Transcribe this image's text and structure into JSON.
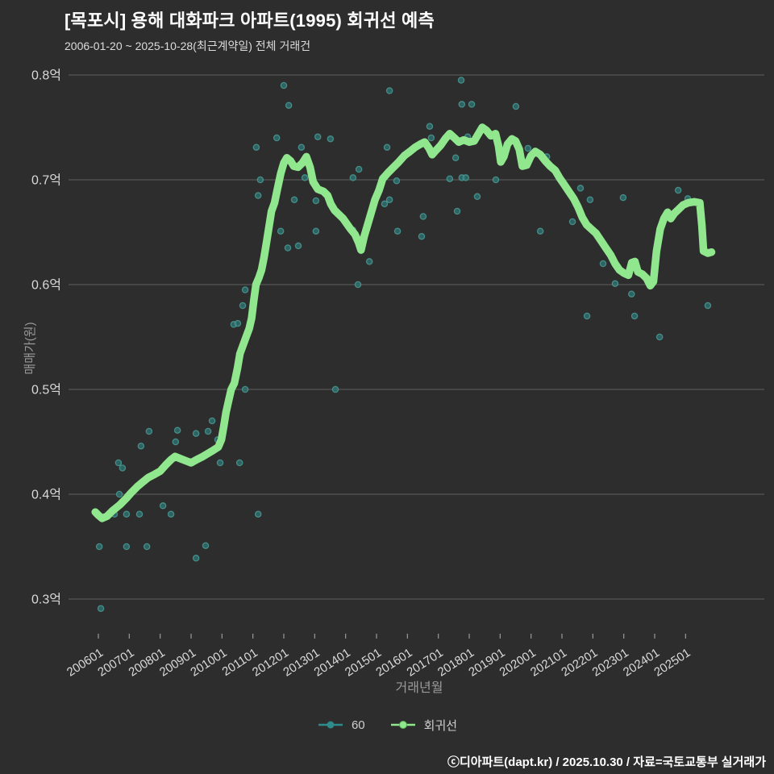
{
  "title": "[목포시] 용해 대화파크 아파트(1995) 회귀선 예측",
  "subtitle": "2006-01-20 ~ 2025-10-28(최근계약일) 전체 거래건",
  "footer": "ⓒ디아파트(dapt.kr) / 2025.10.30 / 자료=국토교통부 실거래가",
  "legend": {
    "series1": "60",
    "series2": "회귀선"
  },
  "colors": {
    "background": "#2d2d2d",
    "scatter_stroke": "#4a9a94",
    "scatter_fill": "#2e7674",
    "legend_scatter": "#2e8b8b",
    "line": "#90e78e",
    "grid": "#8a8a8a",
    "tick_text": "#d9d9d9",
    "axis_title": "#9a9a9a"
  },
  "chart_data": {
    "type": "scatter+line",
    "title": "[목포시] 용해 대화파크 아파트(1995) 회귀선 예측",
    "xlabel": "거래년월",
    "ylabel": "매매가(원)",
    "legend_position": "bottom-center",
    "grid": "horizontal-only",
    "xlim": [
      2005.6,
      2026.3
    ],
    "ylim": [
      0.27,
      0.81
    ],
    "y_ticks": [
      {
        "label": "0.8억",
        "value": 0.8
      },
      {
        "label": "0.7억",
        "value": 0.7
      },
      {
        "label": "0.6억",
        "value": 0.6
      },
      {
        "label": "0.5억",
        "value": 0.5
      },
      {
        "label": "0.4억",
        "value": 0.4
      },
      {
        "label": "0.3억",
        "value": 0.3
      }
    ],
    "x_ticks": [
      {
        "label": "200601",
        "value": 2006
      },
      {
        "label": "200701",
        "value": 2007
      },
      {
        "label": "200801",
        "value": 2008
      },
      {
        "label": "200901",
        "value": 2009
      },
      {
        "label": "201001",
        "value": 2010
      },
      {
        "label": "201101",
        "value": 2011
      },
      {
        "label": "201201",
        "value": 2012
      },
      {
        "label": "201301",
        "value": 2013
      },
      {
        "label": "201401",
        "value": 2014
      },
      {
        "label": "201501",
        "value": 2015
      },
      {
        "label": "201601",
        "value": 2016
      },
      {
        "label": "201701",
        "value": 2017
      },
      {
        "label": "201801",
        "value": 2018
      },
      {
        "label": "201901",
        "value": 2019
      },
      {
        "label": "202001",
        "value": 2020
      },
      {
        "label": "202101",
        "value": 2021
      },
      {
        "label": "202201",
        "value": 2022
      },
      {
        "label": "202301",
        "value": 2023
      },
      {
        "label": "202401",
        "value": 2024
      },
      {
        "label": "202501",
        "value": 2025
      }
    ],
    "series": [
      {
        "name": "60",
        "type": "scatter",
        "points": [
          [
            2006.03,
            0.35
          ],
          [
            2006.08,
            0.291
          ],
          [
            2006.52,
            0.381
          ],
          [
            2006.65,
            0.43
          ],
          [
            2006.68,
            0.4
          ],
          [
            2006.78,
            0.425
          ],
          [
            2006.91,
            0.381
          ],
          [
            2006.91,
            0.35
          ],
          [
            2007.04,
            0.4
          ],
          [
            2007.33,
            0.381
          ],
          [
            2007.38,
            0.446
          ],
          [
            2007.57,
            0.35
          ],
          [
            2007.64,
            0.46
          ],
          [
            2008.09,
            0.389
          ],
          [
            2008.35,
            0.381
          ],
          [
            2008.5,
            0.45
          ],
          [
            2008.56,
            0.461
          ],
          [
            2009.16,
            0.458
          ],
          [
            2009.16,
            0.339
          ],
          [
            2009.47,
            0.351
          ],
          [
            2009.55,
            0.46
          ],
          [
            2009.68,
            0.47
          ],
          [
            2009.86,
            0.452
          ],
          [
            2009.94,
            0.43
          ],
          [
            2010.38,
            0.562
          ],
          [
            2010.51,
            0.563
          ],
          [
            2010.57,
            0.43
          ],
          [
            2010.67,
            0.58
          ],
          [
            2010.75,
            0.595
          ],
          [
            2010.75,
            0.5
          ],
          [
            2011.11,
            0.731
          ],
          [
            2011.17,
            0.381
          ],
          [
            2011.17,
            0.685
          ],
          [
            2011.24,
            0.7
          ],
          [
            2011.77,
            0.74
          ],
          [
            2011.9,
            0.651
          ],
          [
            2012.0,
            0.79
          ],
          [
            2012.13,
            0.635
          ],
          [
            2012.16,
            0.771
          ],
          [
            2012.34,
            0.681
          ],
          [
            2012.47,
            0.637
          ],
          [
            2012.57,
            0.731
          ],
          [
            2012.68,
            0.702
          ],
          [
            2013.04,
            0.651
          ],
          [
            2013.04,
            0.68
          ],
          [
            2013.1,
            0.741
          ],
          [
            2013.51,
            0.739
          ],
          [
            2013.67,
            0.5
          ],
          [
            2014.24,
            0.702
          ],
          [
            2014.24,
            0.652
          ],
          [
            2014.4,
            0.6
          ],
          [
            2014.43,
            0.71
          ],
          [
            2014.77,
            0.622
          ],
          [
            2015.26,
            0.677
          ],
          [
            2015.34,
            0.731
          ],
          [
            2015.42,
            0.785
          ],
          [
            2015.42,
            0.681
          ],
          [
            2015.65,
            0.699
          ],
          [
            2015.68,
            0.651
          ],
          [
            2015.86,
            0.722
          ],
          [
            2016.46,
            0.646
          ],
          [
            2016.51,
            0.665
          ],
          [
            2016.72,
            0.751
          ],
          [
            2016.77,
            0.74
          ],
          [
            2017.37,
            0.701
          ],
          [
            2017.56,
            0.721
          ],
          [
            2017.61,
            0.67
          ],
          [
            2017.74,
            0.795
          ],
          [
            2017.76,
            0.772
          ],
          [
            2017.76,
            0.702
          ],
          [
            2017.89,
            0.702
          ],
          [
            2017.95,
            0.741
          ],
          [
            2018.08,
            0.772
          ],
          [
            2018.26,
            0.684
          ],
          [
            2018.86,
            0.7
          ],
          [
            2019.51,
            0.77
          ],
          [
            2019.9,
            0.73
          ],
          [
            2020.3,
            0.651
          ],
          [
            2020.51,
            0.722
          ],
          [
            2021.34,
            0.66
          ],
          [
            2021.6,
            0.692
          ],
          [
            2021.81,
            0.57
          ],
          [
            2021.91,
            0.681
          ],
          [
            2022.33,
            0.62
          ],
          [
            2022.72,
            0.601
          ],
          [
            2022.98,
            0.683
          ],
          [
            2023.25,
            0.591
          ],
          [
            2023.35,
            0.57
          ],
          [
            2024.16,
            0.55
          ],
          [
            2024.76,
            0.69
          ],
          [
            2025.07,
            0.682
          ],
          [
            2025.72,
            0.58
          ]
        ]
      },
      {
        "name": "회귀선",
        "type": "line",
        "points": [
          [
            2005.9,
            0.383
          ],
          [
            2006.0,
            0.38
          ],
          [
            2006.12,
            0.377
          ],
          [
            2006.28,
            0.379
          ],
          [
            2006.45,
            0.384
          ],
          [
            2006.7,
            0.39
          ],
          [
            2006.9,
            0.396
          ],
          [
            2007.05,
            0.401
          ],
          [
            2007.25,
            0.407
          ],
          [
            2007.45,
            0.412
          ],
          [
            2007.62,
            0.416
          ],
          [
            2007.82,
            0.419
          ],
          [
            2008.0,
            0.422
          ],
          [
            2008.18,
            0.428
          ],
          [
            2008.35,
            0.433
          ],
          [
            2008.48,
            0.436
          ],
          [
            2008.65,
            0.434
          ],
          [
            2008.82,
            0.432
          ],
          [
            2009.0,
            0.43
          ],
          [
            2009.18,
            0.433
          ],
          [
            2009.38,
            0.436
          ],
          [
            2009.55,
            0.439
          ],
          [
            2009.72,
            0.442
          ],
          [
            2009.88,
            0.445
          ],
          [
            2009.98,
            0.452
          ],
          [
            2010.06,
            0.465
          ],
          [
            2010.13,
            0.478
          ],
          [
            2010.22,
            0.49
          ],
          [
            2010.3,
            0.5
          ],
          [
            2010.4,
            0.506
          ],
          [
            2010.5,
            0.52
          ],
          [
            2010.58,
            0.534
          ],
          [
            2010.68,
            0.542
          ],
          [
            2010.78,
            0.55
          ],
          [
            2010.88,
            0.558
          ],
          [
            2010.96,
            0.568
          ],
          [
            2011.03,
            0.585
          ],
          [
            2011.1,
            0.6
          ],
          [
            2011.2,
            0.607
          ],
          [
            2011.28,
            0.614
          ],
          [
            2011.36,
            0.626
          ],
          [
            2011.44,
            0.64
          ],
          [
            2011.52,
            0.655
          ],
          [
            2011.6,
            0.67
          ],
          [
            2011.7,
            0.678
          ],
          [
            2011.8,
            0.692
          ],
          [
            2011.9,
            0.706
          ],
          [
            2012.0,
            0.716
          ],
          [
            2012.1,
            0.721
          ],
          [
            2012.22,
            0.718
          ],
          [
            2012.32,
            0.713
          ],
          [
            2012.46,
            0.712
          ],
          [
            2012.6,
            0.716
          ],
          [
            2012.73,
            0.722
          ],
          [
            2012.85,
            0.712
          ],
          [
            2012.95,
            0.698
          ],
          [
            2013.1,
            0.691
          ],
          [
            2013.28,
            0.689
          ],
          [
            2013.42,
            0.685
          ],
          [
            2013.52,
            0.677
          ],
          [
            2013.64,
            0.671
          ],
          [
            2013.78,
            0.667
          ],
          [
            2013.92,
            0.663
          ],
          [
            2014.04,
            0.658
          ],
          [
            2014.16,
            0.653
          ],
          [
            2014.3,
            0.648
          ],
          [
            2014.42,
            0.64
          ],
          [
            2014.5,
            0.633
          ],
          [
            2014.6,
            0.646
          ],
          [
            2014.72,
            0.658
          ],
          [
            2014.84,
            0.67
          ],
          [
            2014.95,
            0.681
          ],
          [
            2015.08,
            0.69
          ],
          [
            2015.2,
            0.701
          ],
          [
            2015.38,
            0.707
          ],
          [
            2015.55,
            0.712
          ],
          [
            2015.72,
            0.717
          ],
          [
            2015.9,
            0.723
          ],
          [
            2016.08,
            0.727
          ],
          [
            2016.25,
            0.731
          ],
          [
            2016.42,
            0.734
          ],
          [
            2016.56,
            0.736
          ],
          [
            2016.7,
            0.73
          ],
          [
            2016.8,
            0.724
          ],
          [
            2016.92,
            0.728
          ],
          [
            2017.08,
            0.733
          ],
          [
            2017.22,
            0.739
          ],
          [
            2017.37,
            0.744
          ],
          [
            2017.52,
            0.74
          ],
          [
            2017.66,
            0.736
          ],
          [
            2017.82,
            0.738
          ],
          [
            2018.0,
            0.736
          ],
          [
            2018.16,
            0.737
          ],
          [
            2018.3,
            0.744
          ],
          [
            2018.42,
            0.75
          ],
          [
            2018.56,
            0.747
          ],
          [
            2018.7,
            0.742
          ],
          [
            2018.85,
            0.744
          ],
          [
            2018.95,
            0.732
          ],
          [
            2019.02,
            0.717
          ],
          [
            2019.12,
            0.722
          ],
          [
            2019.24,
            0.734
          ],
          [
            2019.38,
            0.739
          ],
          [
            2019.5,
            0.737
          ],
          [
            2019.62,
            0.729
          ],
          [
            2019.72,
            0.713
          ],
          [
            2019.86,
            0.714
          ],
          [
            2020.0,
            0.723
          ],
          [
            2020.14,
            0.727
          ],
          [
            2020.3,
            0.724
          ],
          [
            2020.46,
            0.718
          ],
          [
            2020.62,
            0.713
          ],
          [
            2020.78,
            0.709
          ],
          [
            2020.92,
            0.702
          ],
          [
            2021.06,
            0.696
          ],
          [
            2021.22,
            0.689
          ],
          [
            2021.38,
            0.682
          ],
          [
            2021.52,
            0.674
          ],
          [
            2021.66,
            0.664
          ],
          [
            2021.8,
            0.657
          ],
          [
            2021.95,
            0.653
          ],
          [
            2022.1,
            0.649
          ],
          [
            2022.26,
            0.642
          ],
          [
            2022.42,
            0.635
          ],
          [
            2022.58,
            0.628
          ],
          [
            2022.72,
            0.62
          ],
          [
            2022.86,
            0.614
          ],
          [
            2023.0,
            0.611
          ],
          [
            2023.15,
            0.609
          ],
          [
            2023.26,
            0.621
          ],
          [
            2023.36,
            0.622
          ],
          [
            2023.46,
            0.612
          ],
          [
            2023.6,
            0.61
          ],
          [
            2023.74,
            0.606
          ],
          [
            2023.86,
            0.599
          ],
          [
            2023.96,
            0.603
          ],
          [
            2024.06,
            0.632
          ],
          [
            2024.18,
            0.653
          ],
          [
            2024.3,
            0.663
          ],
          [
            2024.42,
            0.669
          ],
          [
            2024.52,
            0.663
          ],
          [
            2024.64,
            0.668
          ],
          [
            2024.78,
            0.672
          ],
          [
            2024.92,
            0.676
          ],
          [
            2025.08,
            0.678
          ],
          [
            2025.28,
            0.679
          ],
          [
            2025.46,
            0.678
          ],
          [
            2025.53,
            0.656
          ],
          [
            2025.58,
            0.632
          ],
          [
            2025.72,
            0.63
          ],
          [
            2025.84,
            0.631
          ]
        ]
      }
    ]
  }
}
